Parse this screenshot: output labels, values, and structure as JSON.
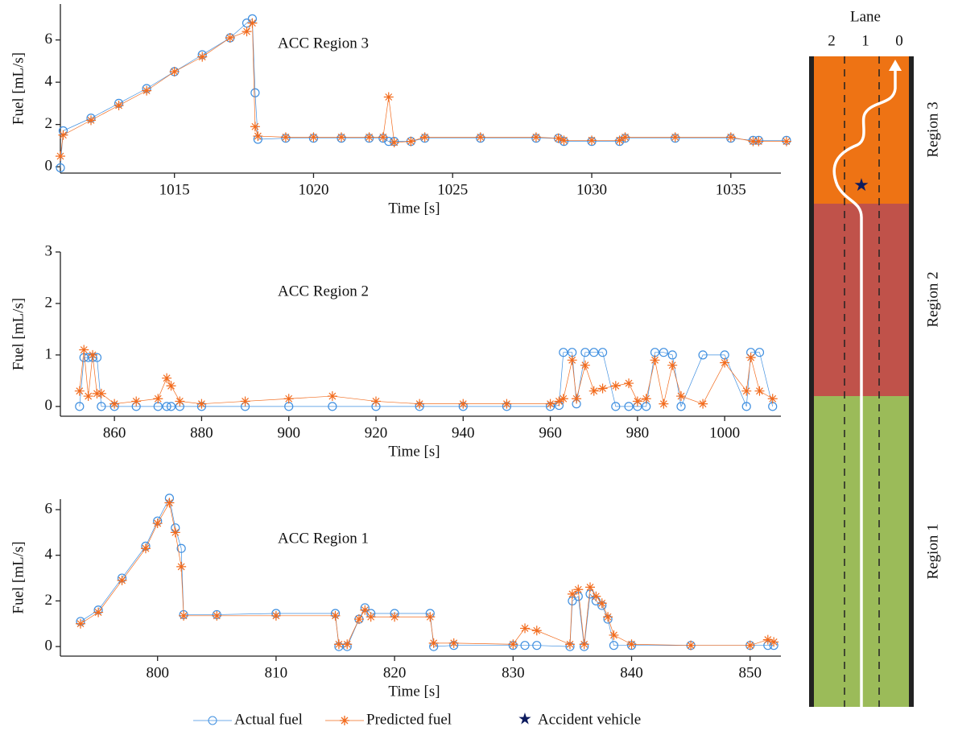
{
  "chart_data": [
    {
      "type": "line",
      "annotation": "ACC Region 3",
      "xlabel": "Time [s]",
      "ylabel": "Fuel [mL/s]",
      "x": [
        1010.9,
        1011,
        1012,
        1013,
        1014,
        1015,
        1016,
        1017,
        1017.6,
        1017.8,
        1017.9,
        1018,
        1019,
        1020,
        1021,
        1022,
        1022.5,
        1022.7,
        1022.9,
        1023.5,
        1024,
        1026,
        1028,
        1028.8,
        1029,
        1030,
        1031,
        1031.2,
        1033,
        1035,
        1035.8,
        1036,
        1037
      ],
      "series": [
        {
          "name": "Actual fuel",
          "color": "#3f8fe0",
          "marker": "circle",
          "values": [
            -0.05,
            1.7,
            2.3,
            3.0,
            3.7,
            4.5,
            5.3,
            6.1,
            6.8,
            7.0,
            3.5,
            1.3,
            1.35,
            1.35,
            1.35,
            1.35,
            1.35,
            1.2,
            1.2,
            1.2,
            1.35,
            1.35,
            1.35,
            1.35,
            1.2,
            1.2,
            1.2,
            1.35,
            1.35,
            1.35,
            1.25,
            1.25,
            1.25
          ]
        },
        {
          "name": "Predicted fuel",
          "color": "#f26b1d",
          "marker": "asterisk",
          "values": [
            0.5,
            1.5,
            2.2,
            2.9,
            3.6,
            4.5,
            5.2,
            6.1,
            6.4,
            6.8,
            1.9,
            1.45,
            1.4,
            1.4,
            1.4,
            1.4,
            1.4,
            3.3,
            1.15,
            1.2,
            1.4,
            1.4,
            1.4,
            1.35,
            1.25,
            1.25,
            1.25,
            1.4,
            1.4,
            1.4,
            1.2,
            1.2,
            1.2
          ]
        }
      ],
      "xlim": [
        1010.9,
        1036.8
      ],
      "xticks": [
        1015,
        1020,
        1025,
        1030,
        1035
      ],
      "ylim": [
        -0.3,
        7.7
      ],
      "yticks": [
        0,
        2,
        4,
        6
      ]
    },
    {
      "type": "line",
      "annotation": "ACC Region 2",
      "xlabel": "Time [s]",
      "ylabel": "Fuel [mL/s]",
      "x": [
        852,
        853,
        854,
        855,
        856,
        857,
        860,
        865,
        870,
        872,
        873,
        875,
        880,
        890,
        900,
        910,
        920,
        930,
        940,
        950,
        960,
        962,
        963,
        965,
        966,
        968,
        970,
        972,
        975,
        978,
        980,
        982,
        984,
        986,
        988,
        990,
        995,
        1000,
        1005,
        1006,
        1008,
        1011
      ],
      "series": [
        {
          "name": "Actual fuel",
          "color": "#3f8fe0",
          "marker": "circle",
          "values": [
            0,
            0.95,
            0.95,
            0.95,
            0.95,
            0,
            0,
            0,
            0,
            0,
            0,
            0,
            0,
            0,
            0,
            0,
            0,
            0,
            0,
            0,
            0,
            0.02,
            1.05,
            1.05,
            0.05,
            1.05,
            1.05,
            1.05,
            0,
            0,
            0,
            0,
            1.05,
            1.05,
            1.0,
            0,
            1.0,
            1.0,
            0,
            1.05,
            1.05,
            0
          ]
        },
        {
          "name": "Predicted fuel",
          "color": "#f26b1d",
          "marker": "asterisk",
          "values": [
            0.3,
            1.1,
            0.2,
            1.0,
            0.25,
            0.25,
            0.05,
            0.1,
            0.15,
            0.55,
            0.4,
            0.1,
            0.05,
            0.1,
            0.15,
            0.2,
            0.1,
            0.05,
            0.05,
            0.05,
            0.05,
            0.1,
            0.15,
            0.9,
            0.15,
            0.8,
            0.3,
            0.35,
            0.4,
            0.45,
            0.1,
            0.15,
            0.9,
            0.05,
            0.8,
            0.2,
            0.05,
            0.85,
            0.3,
            0.95,
            0.3,
            0.15
          ]
        }
      ],
      "xlim": [
        847.6,
        1012.9
      ],
      "xticks": [
        860,
        880,
        900,
        920,
        940,
        960,
        980,
        1000
      ],
      "ylim": [
        -0.19,
        3
      ],
      "yticks": [
        0,
        1,
        2,
        3
      ]
    },
    {
      "type": "line",
      "annotation": "ACC Region 1",
      "xlabel": "Time [s]",
      "ylabel": "Fuel [mL/s]",
      "x": [
        793.5,
        795,
        797,
        799,
        800,
        801,
        801.5,
        802,
        802.2,
        805,
        810,
        815,
        815.3,
        816,
        817,
        817.5,
        818,
        820,
        823,
        823.3,
        825,
        830,
        831,
        832,
        834.8,
        835,
        835.5,
        836,
        836.5,
        837,
        837.5,
        838,
        838.5,
        840,
        845,
        850,
        851.5,
        852
      ],
      "series": [
        {
          "name": "Actual fuel",
          "color": "#3f8fe0",
          "marker": "circle",
          "values": [
            1.1,
            1.6,
            3.0,
            4.4,
            5.5,
            6.5,
            5.2,
            4.3,
            1.4,
            1.4,
            1.45,
            1.45,
            0,
            0,
            1.2,
            1.7,
            1.45,
            1.45,
            1.45,
            0,
            0.05,
            0.05,
            0.05,
            0.05,
            0,
            2.0,
            2.2,
            0,
            2.3,
            2.0,
            1.8,
            1.2,
            0.05,
            0.05,
            0.05,
            0.05,
            0.05,
            0.05
          ]
        },
        {
          "name": "Predicted fuel",
          "color": "#f26b1d",
          "marker": "asterisk",
          "values": [
            1.0,
            1.5,
            2.9,
            4.3,
            5.4,
            6.3,
            5.0,
            3.5,
            1.35,
            1.35,
            1.35,
            1.35,
            0.1,
            0.1,
            1.2,
            1.6,
            1.3,
            1.3,
            1.3,
            0.15,
            0.15,
            0.1,
            0.8,
            0.7,
            0.1,
            2.3,
            2.5,
            0.1,
            2.6,
            2.2,
            1.9,
            1.3,
            0.5,
            0.1,
            0.05,
            0.05,
            0.3,
            0.2
          ]
        }
      ],
      "xlim": [
        791.8,
        852.6
      ],
      "xticks": [
        800,
        810,
        820,
        830,
        840,
        850
      ],
      "ylim": [
        -0.42,
        6.46
      ],
      "yticks": [
        0,
        2,
        4,
        6
      ]
    }
  ],
  "diagram": {
    "lane_title": "Lane",
    "lanes": [
      "2",
      "1",
      "0"
    ],
    "regions": [
      "Region 3",
      "Region 2",
      "Region 1"
    ],
    "marker_label": "Accident vehicle",
    "marker_color": "#0d1b5e"
  }
}
